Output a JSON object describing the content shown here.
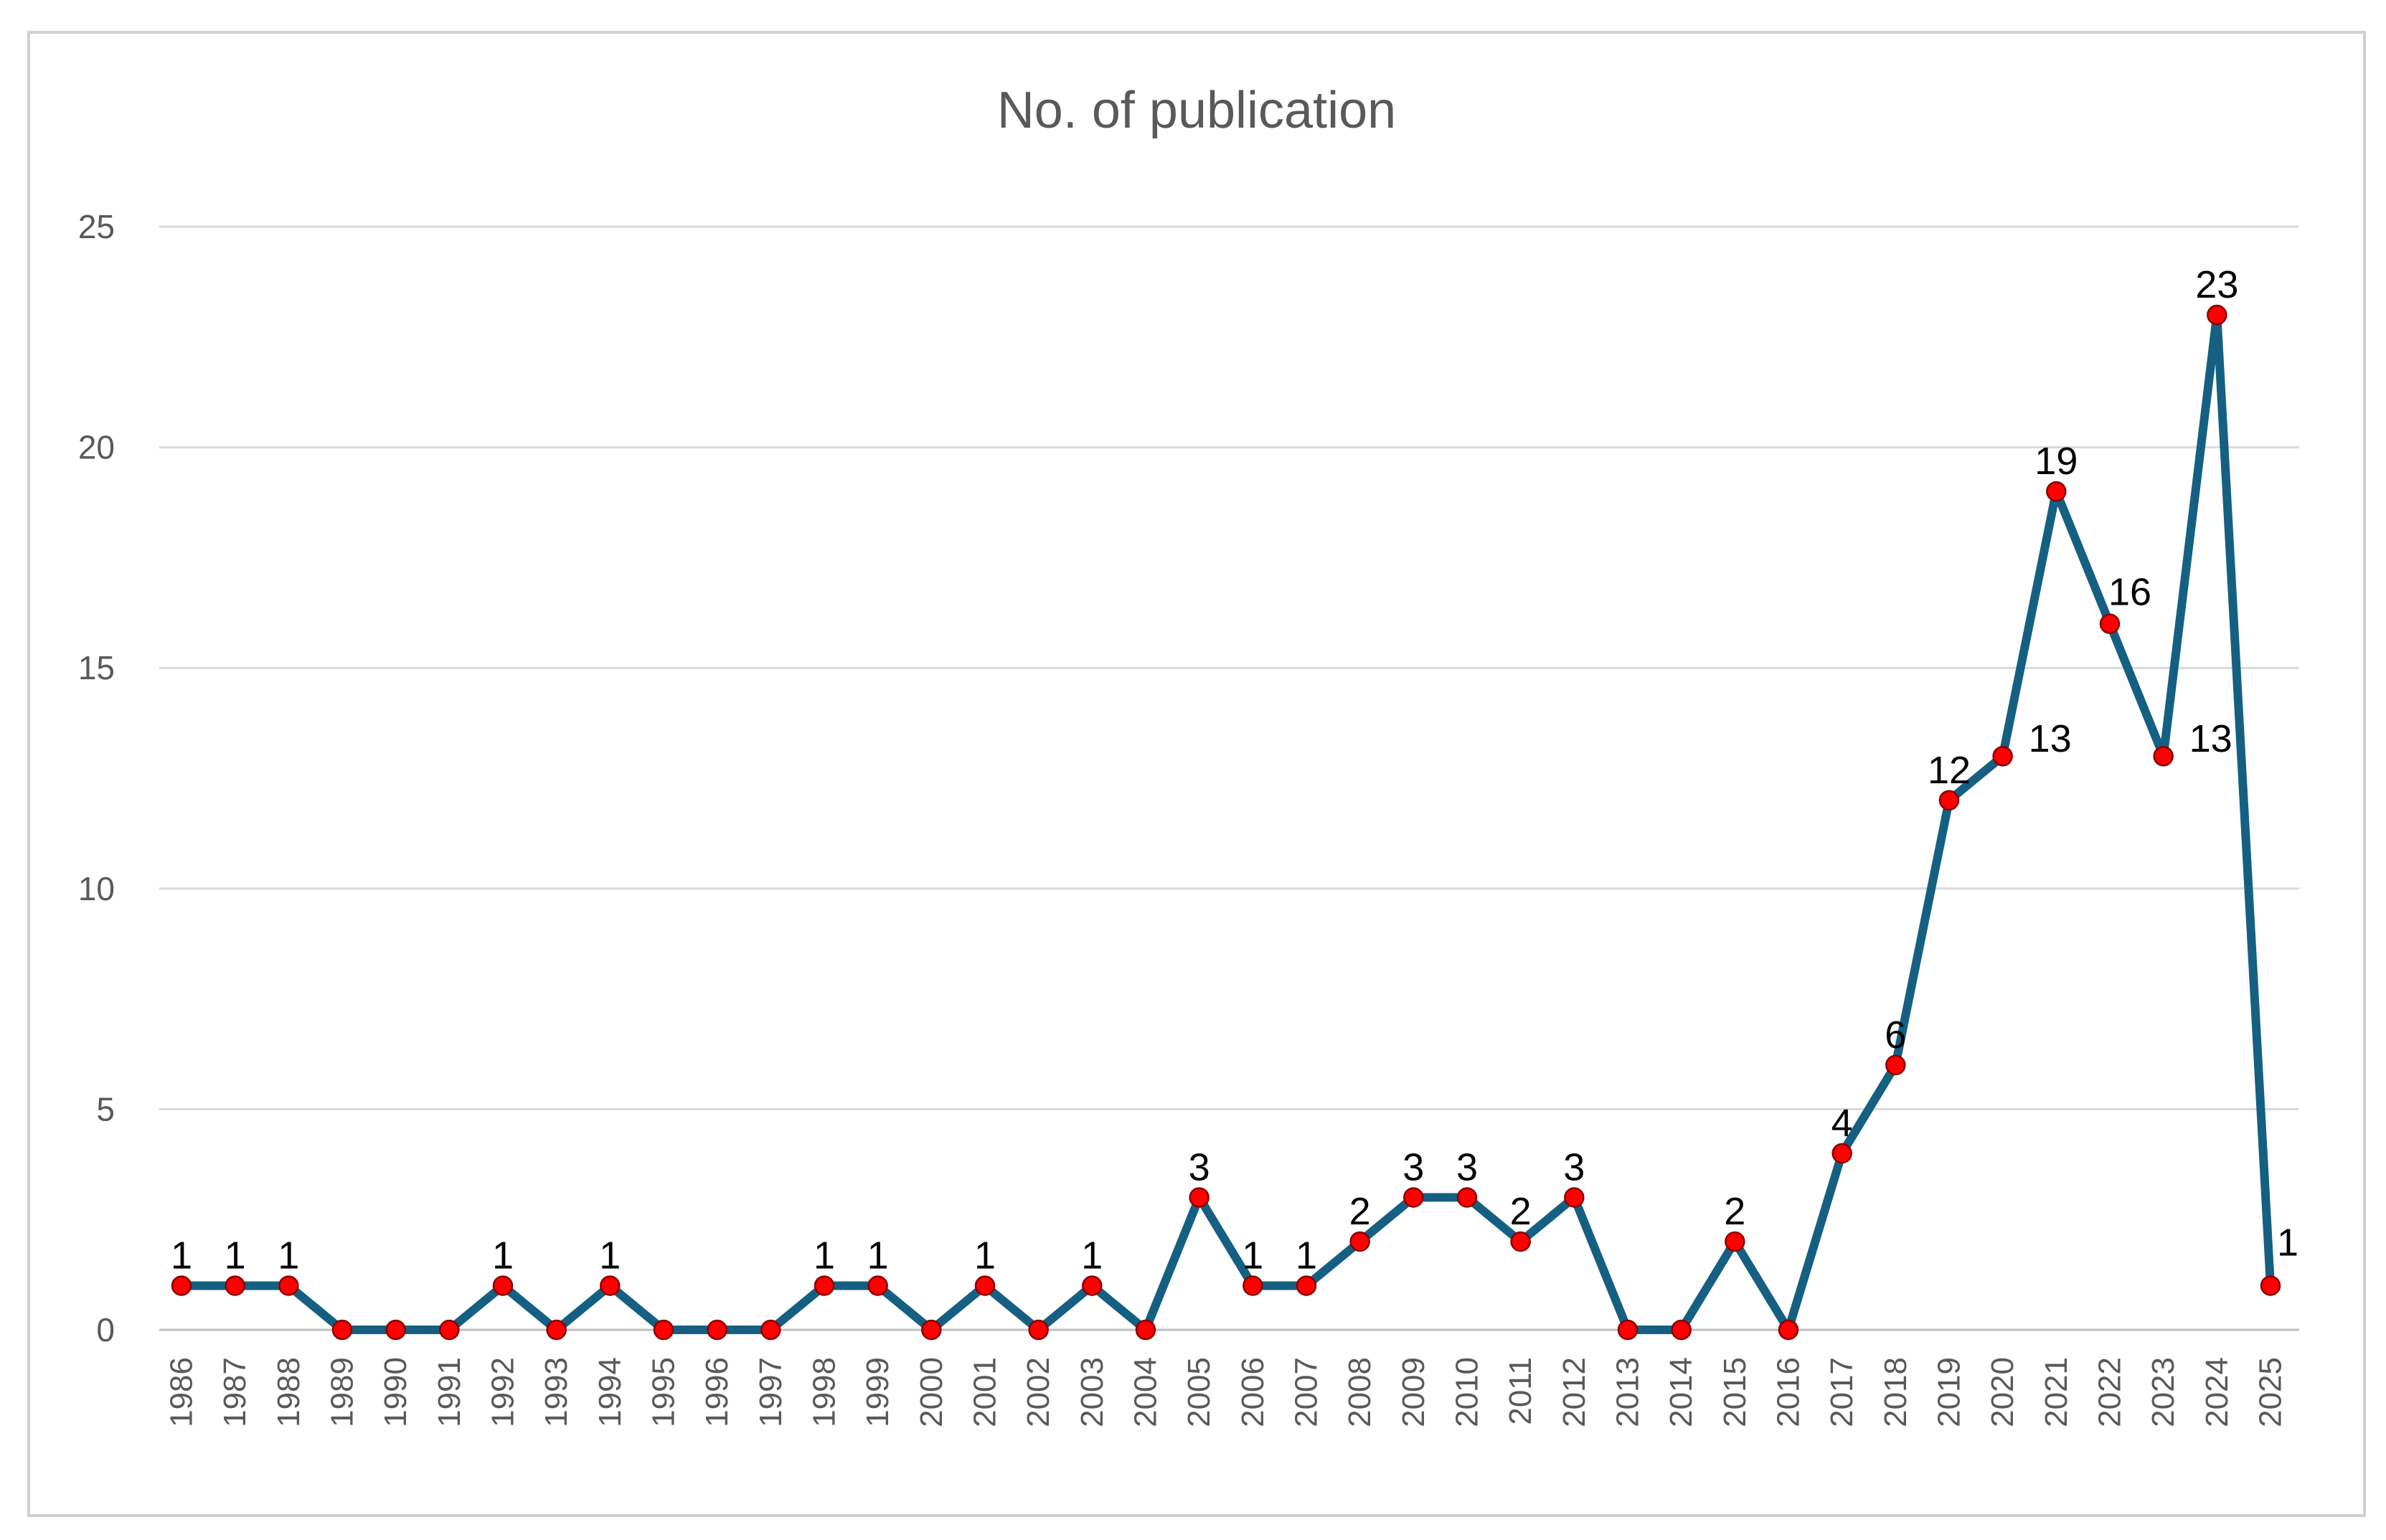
{
  "chart_data": {
    "type": "line",
    "title": "No. of publication",
    "xlabel": "",
    "ylabel": "",
    "ylim": [
      0,
      25
    ],
    "yticks": [
      0,
      5,
      10,
      15,
      20,
      25
    ],
    "grid": true,
    "legend": "none",
    "categories": [
      "1986",
      "1987",
      "1988",
      "1989",
      "1990",
      "1991",
      "1992",
      "1993",
      "1994",
      "1995",
      "1996",
      "1997",
      "1998",
      "1999",
      "2000",
      "2001",
      "2002",
      "2003",
      "2004",
      "2005",
      "2006",
      "2007",
      "2008",
      "2009",
      "2010",
      "2011",
      "2012",
      "2013",
      "2014",
      "2015",
      "2016",
      "2017",
      "2018",
      "2019",
      "2020",
      "2021",
      "2022",
      "2023",
      "2024",
      "2025"
    ],
    "series": [
      {
        "values": [
          1,
          1,
          1,
          0,
          0,
          0,
          1,
          0,
          1,
          0,
          0,
          0,
          1,
          1,
          0,
          1,
          0,
          1,
          0,
          3,
          1,
          1,
          2,
          3,
          3,
          2,
          3,
          0,
          0,
          2,
          0,
          4,
          6,
          12,
          13,
          19,
          16,
          13,
          23,
          1
        ],
        "labels": [
          "1",
          "1",
          "1",
          "",
          "",
          "",
          "1",
          "",
          "1",
          "",
          "",
          "",
          "1",
          "1",
          "",
          "1",
          "",
          "1",
          "",
          "3",
          "1",
          "1",
          "2",
          "3",
          "3",
          "2",
          "3",
          "",
          "",
          "2",
          "",
          "4",
          "6",
          "12",
          "13",
          "19",
          "16",
          "13",
          "23",
          "1"
        ],
        "color": "#156082",
        "marker_color": "#ff0000"
      }
    ]
  }
}
